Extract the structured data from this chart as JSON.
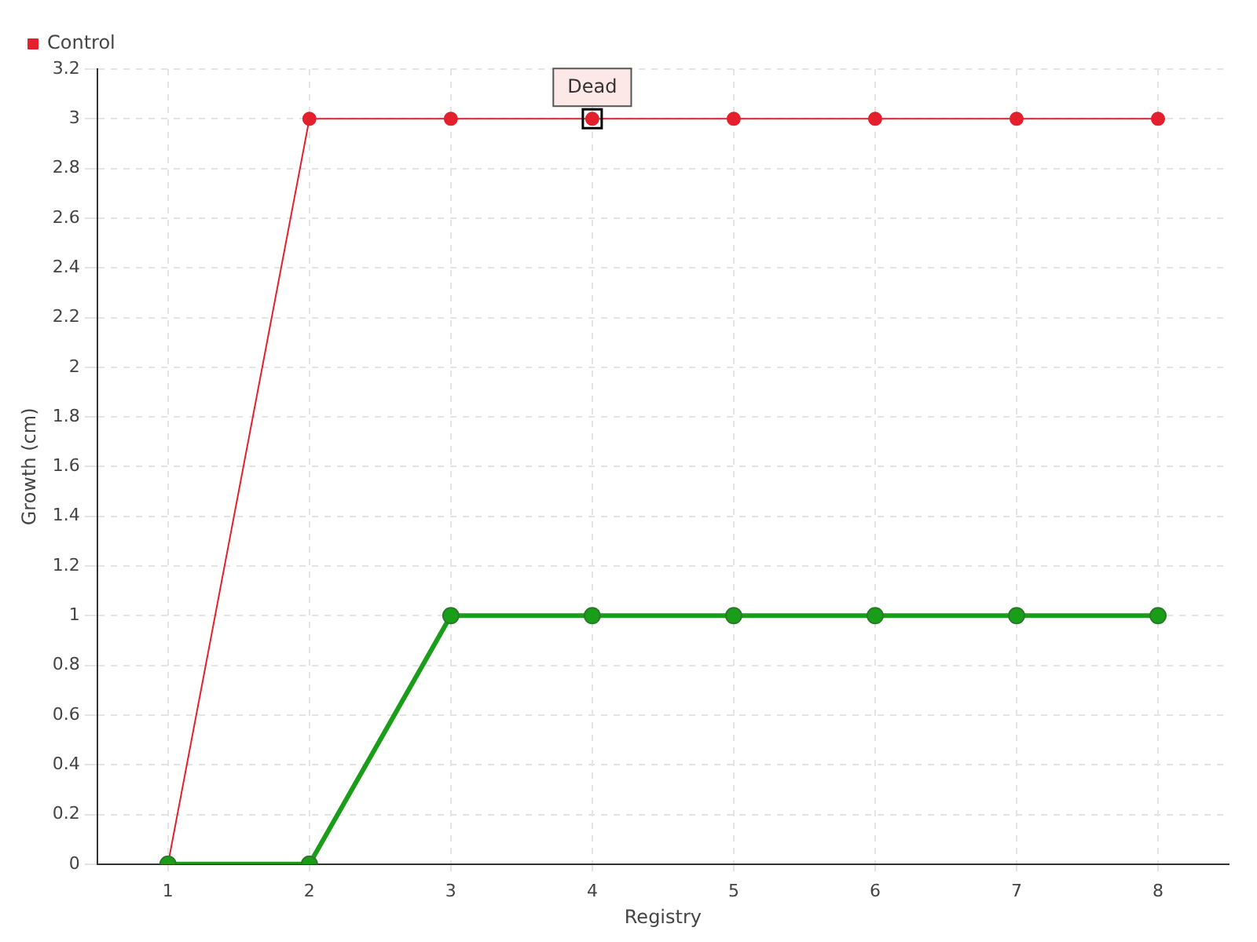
{
  "chart_data": {
    "type": "line",
    "xlabel": "Registry",
    "ylabel": "Growth (cm)",
    "categories": [
      "1",
      "2",
      "3",
      "4",
      "5",
      "6",
      "7",
      "8"
    ],
    "series": [
      {
        "color": "#1a9e1a",
        "values": [
          0,
          0,
          1,
          1,
          1,
          1,
          1,
          1
        ]
      },
      {
        "name": "Control",
        "color": "#e3202b",
        "values": [
          0,
          3,
          3,
          3,
          3,
          3,
          3,
          3
        ]
      }
    ],
    "ylim": [
      0,
      3.2
    ],
    "yticks": [
      0,
      0.2,
      0.4,
      0.6,
      0.8,
      1,
      1.2,
      1.4,
      1.6,
      1.8,
      2,
      2.2,
      2.4,
      2.6,
      2.8,
      3,
      3.2
    ],
    "grid": true,
    "legend": "top left",
    "marker": "circle",
    "line_style": "solid",
    "annotations": [
      {
        "text": "Dead",
        "x": "4",
        "y": 3
      }
    ]
  }
}
